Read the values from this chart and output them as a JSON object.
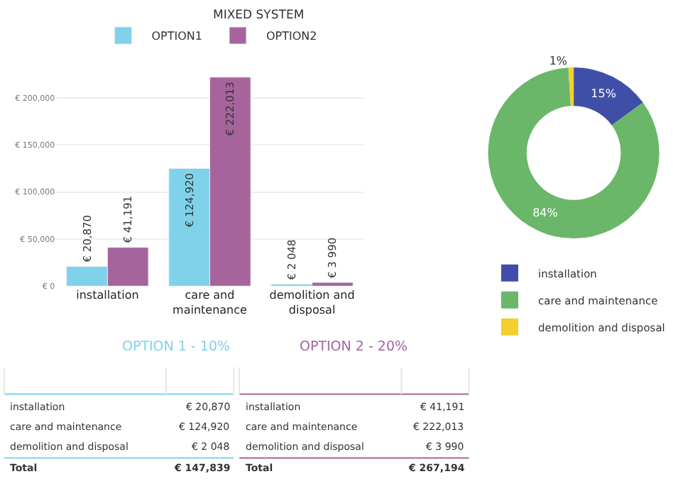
{
  "chart_data": [
    {
      "type": "bar",
      "title": "MIXED SYSTEM",
      "categories": [
        "installation",
        "care and maintenance",
        "demolition and disposal"
      ],
      "series": [
        {
          "name": "OPTION1",
          "color": "#7fd2ea",
          "values": [
            20870,
            124920,
            2048
          ],
          "value_labels": [
            "€ 20,870",
            "€ 124,920",
            "€ 2 048"
          ]
        },
        {
          "name": "OPTION2",
          "color": "#a6649c",
          "values": [
            41191,
            222013,
            3990
          ],
          "value_labels": [
            "€ 41,191",
            "€ 222,013",
            "€ 3 990"
          ]
        }
      ],
      "ylim": [
        0,
        225000
      ],
      "yticks": [
        {
          "value": 0,
          "label": "€ 0"
        },
        {
          "value": 50000,
          "label": "€ 50,000"
        },
        {
          "value": 100000,
          "label": "€ 100,000"
        },
        {
          "value": 150000,
          "label": "€ 150,000"
        },
        {
          "value": 200000,
          "label": "€ 200,000"
        }
      ],
      "grid": "y",
      "legend": "top"
    },
    {
      "type": "donut",
      "categories": [
        "installation",
        "care and maintenance",
        "demolition and disposal"
      ],
      "values": [
        15,
        84,
        1
      ],
      "colors": [
        "#3f4fa8",
        "#6ab76a",
        "#f4cf2e"
      ],
      "value_labels": [
        "15%",
        "84%",
        "1%"
      ],
      "legend": "bottom"
    },
    {
      "type": "other",
      "title": "OPTION 1 - 10%",
      "color": "#7fd2ea",
      "annotations": [
        "installation",
        "€ 20,870",
        "care and maintenance",
        "€ 124,920",
        "demolition and disposal",
        "€ 2 048",
        "Total",
        "€ 147,839"
      ]
    },
    {
      "type": "other",
      "title": "OPTION 2 - 20%",
      "color": "#a6649c",
      "annotations": [
        "installation",
        "€ 41,191",
        "care and maintenance",
        "€ 222,013",
        "demolition and disposal",
        "€ 3 990",
        "Total",
        "€ 267,194"
      ]
    }
  ]
}
